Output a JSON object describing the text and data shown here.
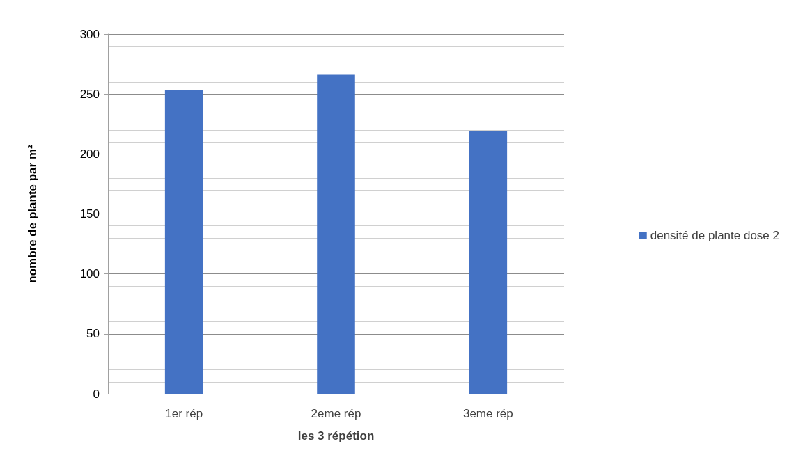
{
  "chart_data": {
    "type": "bar",
    "xlabel": "les 3 répétion",
    "ylabel": "nombre de plante par m²",
    "categories": [
      "1er rép",
      "2eme rép",
      "3eme rép"
    ],
    "series": [
      {
        "name": "densité de plante dose 2",
        "color": "#4472c4",
        "values": [
          253,
          266,
          219
        ]
      }
    ],
    "ylim": [
      0,
      300
    ],
    "yticks": [
      0,
      50,
      100,
      150,
      200,
      250,
      300
    ],
    "grid": "y",
    "legend": "right"
  }
}
